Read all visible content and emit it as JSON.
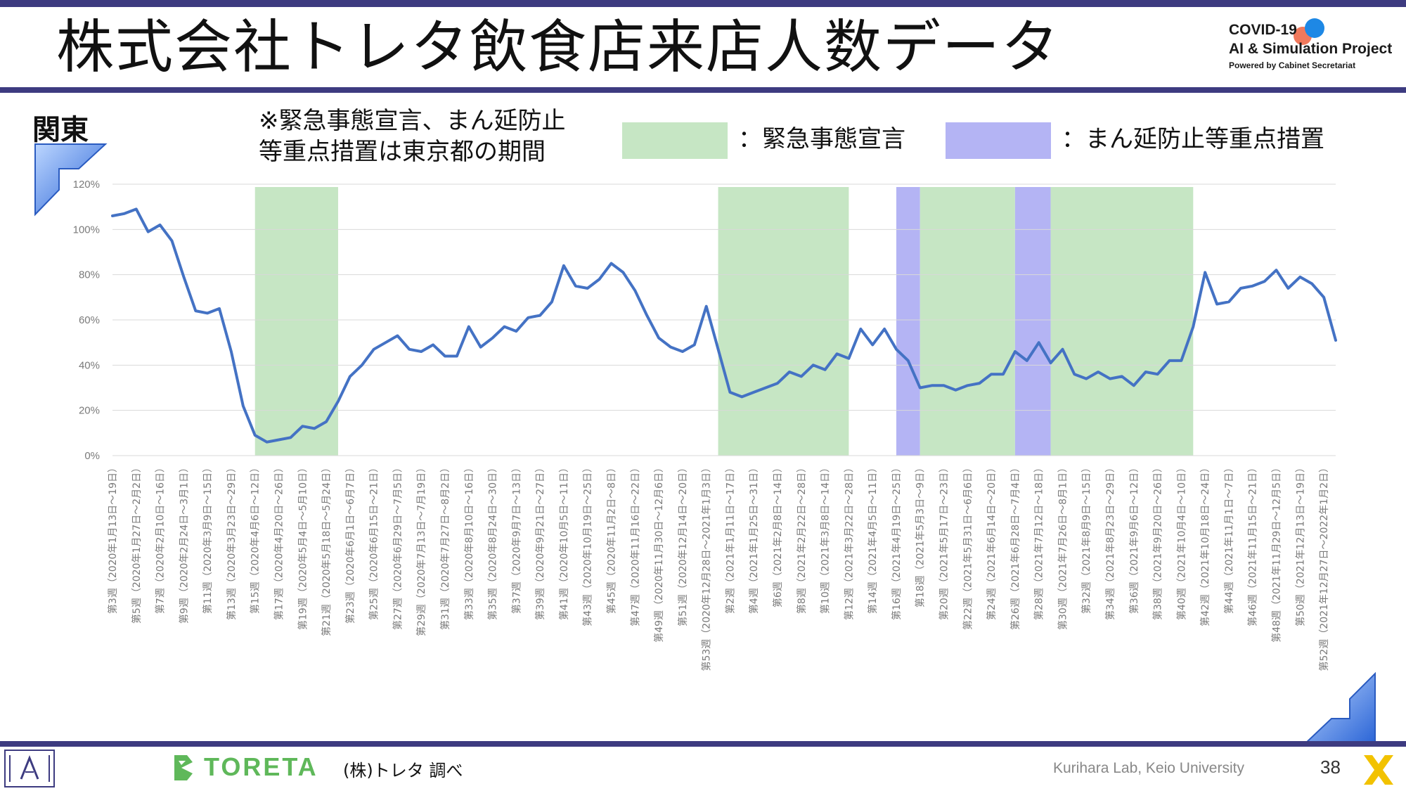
{
  "header": {
    "title": "株式会社トレタ飲食店来店人数データ",
    "project_line1": "COVID-19",
    "project_line2": "AI & Simulation Project",
    "project_line3": "Powered by Cabinet Secretariat"
  },
  "region_label": "関東",
  "note_line1": "※緊急事態宣言、まん延防止",
  "note_line2": "等重点措置は東京都の期間",
  "legend": {
    "emergency": {
      "label": "：緊急事態宣言",
      "color": "#c6e6c4"
    },
    "semi_emergency": {
      "label": "：まん延防止等重点措置",
      "color": "#b4b4f4"
    }
  },
  "footer": {
    "company": "TORETA",
    "source": "(株)トレタ 調べ",
    "lab": "Kurihara Lab, Keio University",
    "page": "38"
  },
  "chart_data": {
    "type": "line",
    "ylim": [
      0,
      120
    ],
    "yticks": [
      "0%",
      "20%",
      "40%",
      "60%",
      "80%",
      "100%",
      "120%"
    ],
    "grid": true,
    "line_color": "#4472c4",
    "x_labels": [
      "第3週（2020年1月13日～19日）",
      "第5週（2020年1月27日～2月2日）",
      "第7週（2020年2月10日～16日）",
      "第9週（2020年2月24日～3月1日）",
      "第11週（2020年3月9日～15日）",
      "第13週（2020年3月23日～29日）",
      "第15週（2020年4月6日～12日）",
      "第17週（2020年4月20日～26日）",
      "第19週（2020年5月4日～5月10日）",
      "第21週（2020年5月18日～5月24日）",
      "第23週（2020年6月1日～6月7日）",
      "第25週（2020年6月15日～21日）",
      "第27週（2020年6月29日～7月5日）",
      "第29週（2020年7月13日～7月19日）",
      "第31週（2020年7月27日～8月2日）",
      "第33週（2020年8月10日～16日）",
      "第35週（2020年8月24日～30日）",
      "第37週（2020年9月7日～13日）",
      "第39週（2020年9月21日～27日）",
      "第41週（2020年10月5日～11日）",
      "第43週（2020年10月19日～25日）",
      "第45週（2020年11月2日～8日）",
      "第47週（2020年11月16日～22日）",
      "第49週（2020年11月30日～12月6日）",
      "第51週（2020年12月14日～20日）",
      "第53週（2020年12月28日～2021年1月3日）",
      "第2週（2021年1月11日～17日）",
      "第4週（2021年1月25日～31日）",
      "第6週（2021年2月8日～14日）",
      "第8週（2021年2月22日～28日）",
      "第10週（2021年3月8日～14日）",
      "第12週（2021年3月22日～28日）",
      "第14週（2021年4月5日～11日）",
      "第16週（2021年4月19日～25日）",
      "第18週（2021年5月3日～9日）",
      "第20週（2021年5月17日～23日）",
      "第22週（2021年5月31日～6月6日）",
      "第24週（2021年6月14日～20日）",
      "第26週（2021年6月28日～7月4日）",
      "第28週（2021年7月12日～18日）",
      "第30週（2021年7月26日～8月1日）",
      "第32週（2021年8月9日～15日）",
      "第34週（2021年8月23日～29日）",
      "第36週（2021年9月6日～12日）",
      "第38週（2021年9月20日～26日）",
      "第40週（2021年10月4日～10日）",
      "第42週（2021年10月18日～24日）",
      "第44週（2021年11月1日～7日）",
      "第46週（2021年11月15日～21日）",
      "第48週（2021年11月29日～12月5日）",
      "第50週（2021年12月13日～19日）",
      "第52週（2021年12月27日～2022年1月2日）"
    ],
    "values": [
      106,
      107,
      109,
      99,
      102,
      95,
      79,
      64,
      63,
      65,
      46,
      22,
      9,
      6,
      7,
      8,
      13,
      12,
      15,
      24,
      35,
      40,
      47,
      50,
      53,
      47,
      46,
      49,
      44,
      44,
      57,
      48,
      52,
      57,
      55,
      61,
      62,
      68,
      84,
      75,
      74,
      78,
      85,
      81,
      73,
      62,
      52,
      48,
      46,
      49,
      66,
      47,
      28,
      26,
      28,
      30,
      32,
      37,
      35,
      40,
      38,
      45,
      43,
      56,
      49,
      56,
      47,
      42,
      30,
      31,
      31,
      29,
      31,
      32,
      36,
      36,
      46,
      42,
      50,
      41,
      47,
      36,
      34,
      37,
      34,
      35,
      31,
      37,
      36,
      42,
      42,
      57,
      81,
      67,
      68,
      74,
      75,
      77,
      82,
      74,
      79,
      76,
      70,
      51
    ],
    "emergency_periods": [
      {
        "type": "emergency",
        "start": 12,
        "end": 19
      },
      {
        "type": "emergency",
        "start": 51,
        "end": 62
      },
      {
        "type": "semi_emergency",
        "start": 66,
        "end": 68
      },
      {
        "type": "emergency",
        "start": 68,
        "end": 76
      },
      {
        "type": "semi_emergency",
        "start": 76,
        "end": 79
      },
      {
        "type": "emergency",
        "start": 79,
        "end": 91
      }
    ]
  }
}
